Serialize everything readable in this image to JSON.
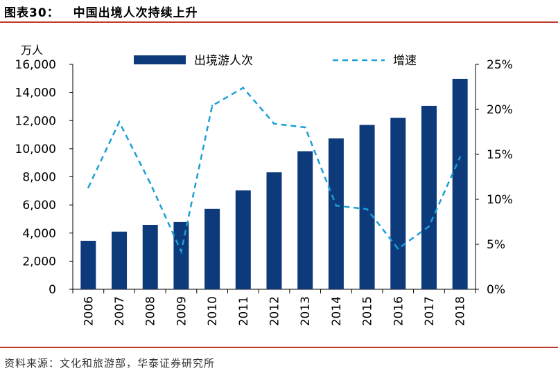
{
  "figure": {
    "label": "图表30：",
    "title": "中国出境人次持续上升",
    "source": "资料来源：文化和旅游部，华泰证券研究所"
  },
  "chart_data": {
    "type": "bar",
    "categories": [
      "2006",
      "2007",
      "2008",
      "2009",
      "2010",
      "2011",
      "2012",
      "2013",
      "2014",
      "2015",
      "2016",
      "2017",
      "2018"
    ],
    "series": [
      {
        "name": "出境游人次",
        "type": "bar",
        "axis": "left",
        "color": "#0d3a7a",
        "values": [
          3450,
          4100,
          4580,
          4780,
          5720,
          7030,
          8320,
          9820,
          10730,
          11690,
          12200,
          13050,
          14970
        ]
      },
      {
        "name": "增速",
        "type": "line",
        "axis": "right",
        "color": "#1a9fd8",
        "style": "dashed",
        "values": [
          11.3,
          18.6,
          11.8,
          4.2,
          20.4,
          22.4,
          18.4,
          18.0,
          9.3,
          8.9,
          4.5,
          7.0,
          14.7
        ]
      }
    ],
    "ylabel_left": "万人",
    "ylim_left": [
      0,
      16000
    ],
    "yticks_left": [
      "0",
      "2,000",
      "4,000",
      "6,000",
      "8,000",
      "10,000",
      "12,000",
      "14,000",
      "16,000"
    ],
    "ylim_right": [
      0,
      25
    ],
    "yticks_right": [
      "0%",
      "5%",
      "10%",
      "15%",
      "20%",
      "25%"
    ],
    "grid": false,
    "legend": "top"
  }
}
